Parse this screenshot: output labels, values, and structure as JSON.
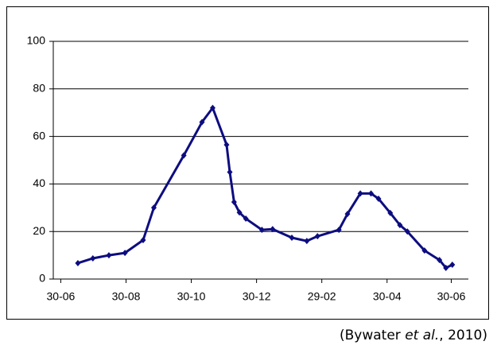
{
  "chart_data": {
    "type": "line",
    "x": [
      16,
      30,
      45,
      60,
      77,
      87,
      115,
      132,
      142,
      155,
      158,
      162,
      167,
      173,
      188,
      198,
      216,
      230,
      240,
      260,
      268,
      280,
      290,
      297,
      308,
      317,
      324,
      340,
      354,
      360,
      366
    ],
    "series": [
      {
        "color": "#0d0d80",
        "values": [
          6.7,
          8.7,
          10,
          11,
          16.4,
          30,
          52,
          66,
          72,
          56.5,
          45,
          32.4,
          28,
          25.4,
          20.7,
          21,
          17.4,
          16,
          18,
          20.7,
          27.4,
          36,
          36,
          33.8,
          27.8,
          22.7,
          20,
          12,
          8,
          4.7,
          6
        ]
      }
    ],
    "xlim": [
      -7,
      381
    ],
    "xticks": [
      {
        "value": 0,
        "label": "30-06"
      },
      {
        "value": 61,
        "label": "30-08"
      },
      {
        "value": 122,
        "label": "30-10"
      },
      {
        "value": 183,
        "label": "30-12"
      },
      {
        "value": 244,
        "label": "29-02"
      },
      {
        "value": 305,
        "label": "30-04"
      },
      {
        "value": 365,
        "label": "30-06"
      }
    ],
    "ylim": [
      0,
      100
    ],
    "yticks": [
      0,
      20,
      40,
      60,
      80,
      100
    ],
    "grid": true
  },
  "caption": {
    "before": "(Bywater ",
    "italic": "et al.",
    "after": ", 2010)"
  }
}
